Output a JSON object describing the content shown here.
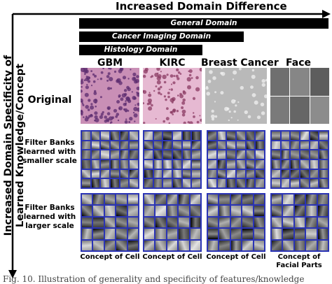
{
  "title": "Increased Domain Difference",
  "y_axis_label_lines": [
    "Increased Domain Specificity of",
    "Learned Knowledge/Concept"
  ],
  "domain_bars": [
    {
      "label": "General Domain"
    },
    {
      "label": "Cancer Imaging Domain"
    },
    {
      "label": "Histology Domain"
    }
  ],
  "columns": [
    {
      "name": "GBM",
      "concept": "Concept of Cell"
    },
    {
      "name": "KIRC",
      "concept": "Concept of Cell"
    },
    {
      "name": "Breast Cancer",
      "concept": "Concept of Cell"
    },
    {
      "name": "Face",
      "concept": "Concept of Facial Parts",
      "concept_lines": [
        "Concept of",
        "Facial Parts"
      ]
    }
  ],
  "rows": [
    {
      "label": "Original"
    },
    {
      "label": "Filter Banks learned with smaller scale",
      "lines": [
        "Filter Banks",
        "learned with",
        "smaller scale"
      ]
    },
    {
      "label": "Filter Banks learned with larger scale",
      "lines": [
        "Filter Banks",
        "learned with",
        "larger scale"
      ]
    }
  ],
  "caption": "Fig. 10. Illustration of generality and specificity of features/knowledge",
  "colors": {
    "grid_border": "#2b34b5",
    "gbm_tissue": "#c98fb6",
    "kirc_tissue": "#e6b9d2",
    "breast_bg": "#b9b9b9",
    "bar": "#000000"
  },
  "icons": [
    "horizontal-arrow-icon",
    "vertical-arrow-icon"
  ]
}
